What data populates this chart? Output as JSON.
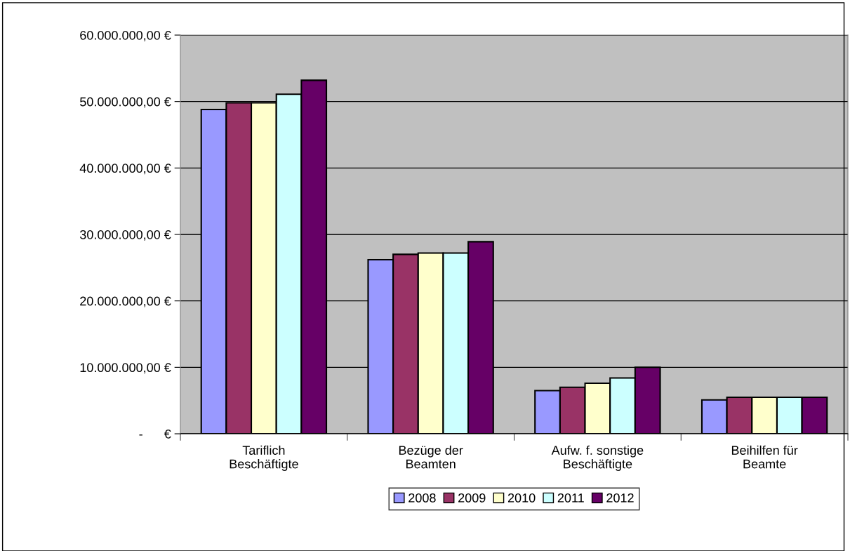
{
  "chart_data": {
    "type": "bar",
    "categories": [
      "Tariflich\nBeschäftigte",
      "Bezüge der\nBeamten",
      "Aufw. f. sonstige\nBeschäftigte",
      "Beihilfen für\nBeamte"
    ],
    "series": [
      {
        "name": "2008",
        "color": "#9999ff",
        "values": [
          48800000,
          26200000,
          6500000,
          5100000
        ]
      },
      {
        "name": "2009",
        "color": "#993366",
        "values": [
          49800000,
          27000000,
          7000000,
          5500000
        ]
      },
      {
        "name": "2010",
        "color": "#ffffcc",
        "values": [
          49800000,
          27200000,
          7600000,
          5500000
        ]
      },
      {
        "name": "2011",
        "color": "#ccffff",
        "values": [
          51100000,
          27200000,
          8400000,
          5500000
        ]
      },
      {
        "name": "2012",
        "color": "#660066",
        "values": [
          53200000,
          28900000,
          10000000,
          5500000
        ]
      }
    ],
    "ylim": [
      0,
      60000000
    ],
    "yticks": [
      {
        "value": 0,
        "label": "-      €"
      },
      {
        "value": 10000000,
        "label": "10.000.000,00 €"
      },
      {
        "value": 20000000,
        "label": "20.000.000,00 €"
      },
      {
        "value": 30000000,
        "label": "30.000.000,00 €"
      },
      {
        "value": 40000000,
        "label": "40.000.000,00 €"
      },
      {
        "value": 50000000,
        "label": "50.000.000,00 €"
      },
      {
        "value": 60000000,
        "label": "60.000.000,00 €"
      }
    ],
    "grid": "y",
    "legend": "bottom"
  }
}
